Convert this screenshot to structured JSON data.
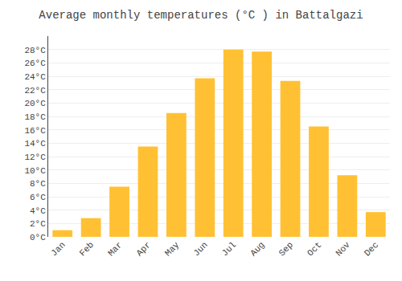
{
  "chart_data": {
    "type": "bar",
    "title": "Average monthly temperatures (°C ) in Battalgazi",
    "categories": [
      "Jan",
      "Feb",
      "Mar",
      "Apr",
      "May",
      "Jun",
      "Jul",
      "Aug",
      "Sep",
      "Oct",
      "Nov",
      "Dec"
    ],
    "values": [
      1.0,
      2.8,
      7.5,
      13.5,
      18.5,
      23.7,
      28.0,
      27.7,
      23.3,
      16.5,
      9.2,
      3.7
    ],
    "color": "#FFC133",
    "ylim": [
      0,
      30
    ],
    "yticks": [
      {
        "value": 0,
        "label": "0°C"
      },
      {
        "value": 2,
        "label": "2°C"
      },
      {
        "value": 4,
        "label": "4°C"
      },
      {
        "value": 6,
        "label": "6°C"
      },
      {
        "value": 8,
        "label": "8°C"
      },
      {
        "value": 10,
        "label": "10°C"
      },
      {
        "value": 12,
        "label": "12°C"
      },
      {
        "value": 14,
        "label": "14°C"
      },
      {
        "value": 16,
        "label": "16°C"
      },
      {
        "value": 18,
        "label": "18°C"
      },
      {
        "value": 20,
        "label": "20°C"
      },
      {
        "value": 22,
        "label": "22°C"
      },
      {
        "value": 24,
        "label": "24°C"
      },
      {
        "value": 26,
        "label": "26°C"
      },
      {
        "value": 28,
        "label": "28°C"
      }
    ],
    "grid": true
  }
}
